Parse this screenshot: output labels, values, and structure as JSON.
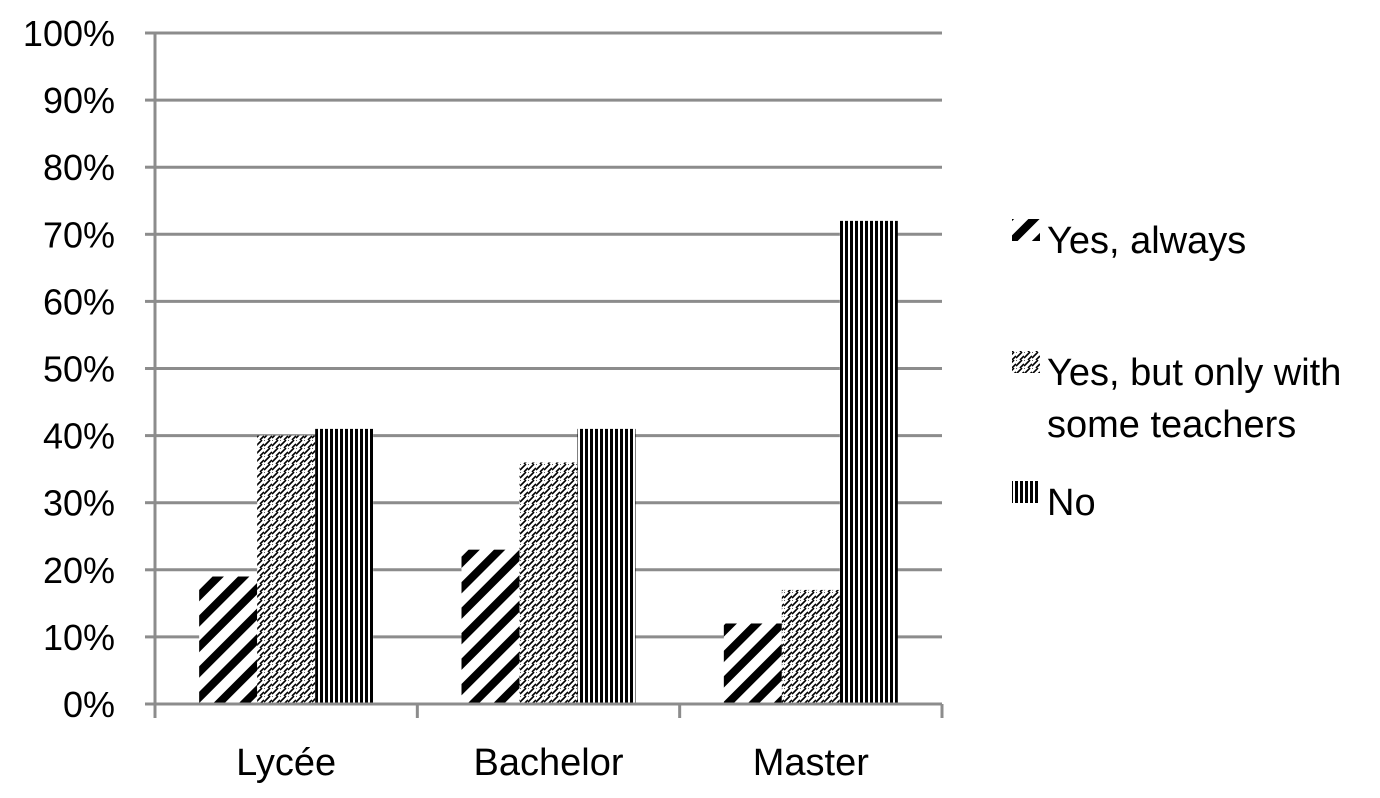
{
  "chart_data": {
    "type": "bar",
    "categories": [
      "Lycée",
      "Bachelor",
      "Master"
    ],
    "series": [
      {
        "name": "Yes, always",
        "values": [
          19,
          23,
          12
        ],
        "pattern": "diagonal-bold"
      },
      {
        "name": "Yes, but only with some teachers",
        "values": [
          40,
          36,
          17
        ],
        "pattern": "diagonal-fine"
      },
      {
        "name": "No",
        "values": [
          41,
          41,
          72
        ],
        "pattern": "vertical"
      }
    ],
    "legend_lines": [
      [
        "Yes, always"
      ],
      [
        "Yes, but only with",
        "some teachers"
      ],
      [
        "No"
      ]
    ],
    "y_ticks": [
      "0%",
      "10%",
      "20%",
      "30%",
      "40%",
      "50%",
      "60%",
      "70%",
      "80%",
      "90%",
      "100%"
    ],
    "ylim": [
      0,
      100
    ],
    "grid": true,
    "legend_position": "right",
    "title": "",
    "xlabel": "",
    "ylabel": ""
  },
  "colors": {
    "grid": "#8c8c8c",
    "axis": "#8c8c8c",
    "pattern_ink": "#000000",
    "background": "#ffffff"
  }
}
